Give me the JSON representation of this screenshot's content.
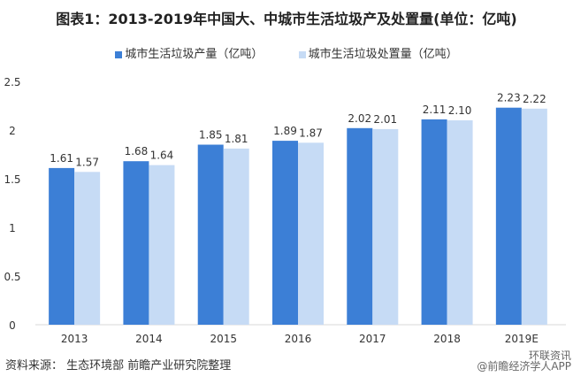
{
  "chart_data": {
    "type": "bar",
    "title": "图表1：2013-2019年中国大、中城市生活垃圾产及处置量(单位：亿吨)",
    "categories": [
      "2013",
      "2014",
      "2015",
      "2016",
      "2017",
      "2018",
      "2019E"
    ],
    "series": [
      {
        "name": "城市生活垃圾产量（亿吨）",
        "color": "#3c7fd6",
        "values": [
          1.61,
          1.68,
          1.85,
          1.89,
          2.02,
          2.11,
          2.23
        ]
      },
      {
        "name": "城市生活垃圾处置量（亿吨）",
        "color": "#c6dbf5",
        "values": [
          1.57,
          1.64,
          1.81,
          1.87,
          2.01,
          2.1,
          2.22
        ]
      }
    ],
    "yticks": [
      "0",
      "0.5",
      "1",
      "1.5",
      "2",
      "2.5"
    ],
    "ylim": [
      0,
      2.5
    ],
    "grid": false,
    "legend": "top"
  },
  "footer": {
    "source": "资料来源： 生态环境部 前瞻产业研究院整理",
    "watermark1": "环联资讯",
    "watermark2": "@前瞻经济学人APP"
  }
}
